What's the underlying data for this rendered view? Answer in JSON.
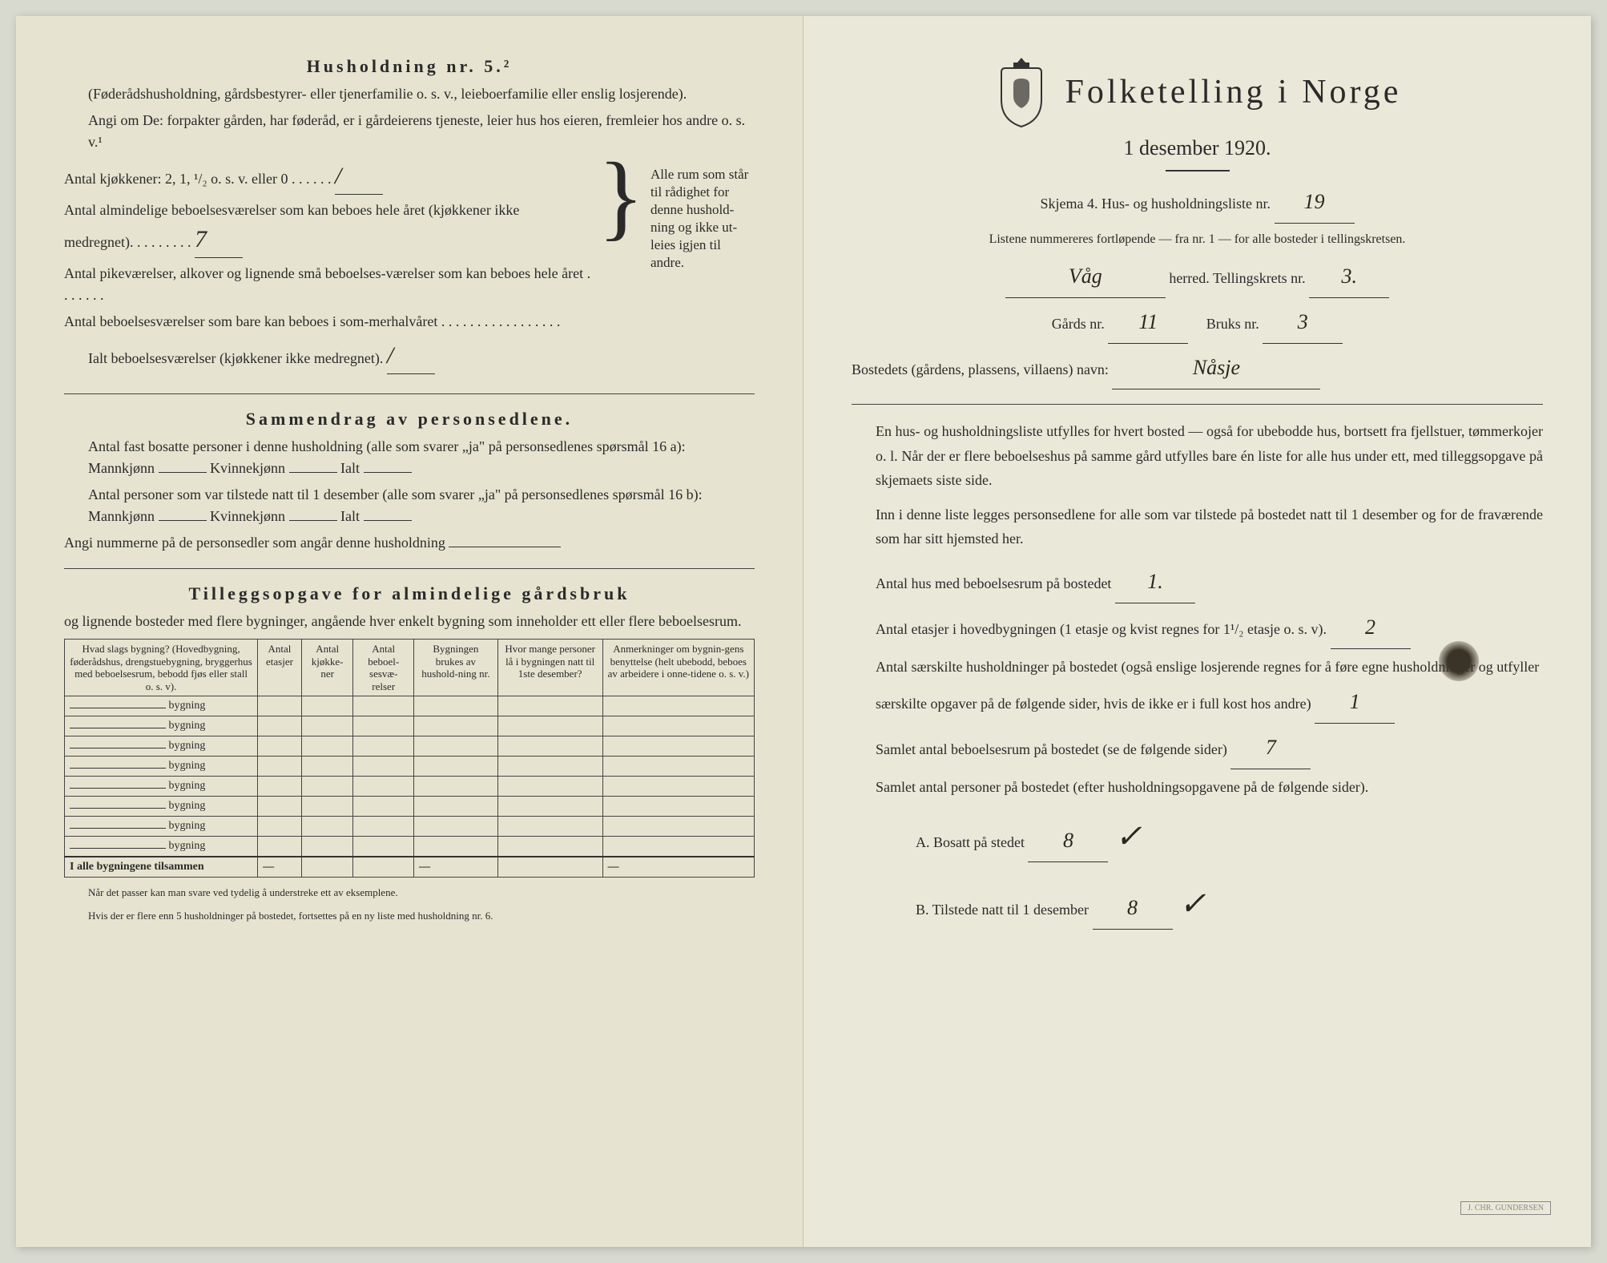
{
  "left": {
    "section5_title": "Husholdning nr. 5.²",
    "section5_sub1": "(Føderådshusholdning, gårdsbestyrer- eller tjenerfamilie o. s. v., leieboerfamilie eller enslig losjerende).",
    "section5_sub2": "Angi om De: forpakter gården, har føderåd, er i gårdeierens tjeneste, leier hus hos eieren, fremleier hos andre o. s. v.¹",
    "kitchen_line": "Antal kjøkkener: 2, 1, ¹/₂ o. s. v. eller 0 . . . . . .",
    "rooms_line1": "Antal almindelige beboelsesværelser som kan beboes hele året (kjøkkener ikke medregnet). . . . . . . . .",
    "rooms_line2": "Antal pikeværelser, alkover og lignende små beboelses-værelser som kan beboes hele året . . . . . . .",
    "rooms_line3": "Antal beboelsesværelser som bare kan beboes i som-merhalvåret . . . . . . . . . . . . . . . . .",
    "rooms_total": "Ialt beboelsesværelser (kjøkkener ikke medregnet).",
    "brace_text": "Alle rum som står til rådighet for denne hushold-ning og ikke ut-leies igjen til andre.",
    "sammendrag_title": "Sammendrag av personsedlene.",
    "sammendrag_l1": "Antal fast bosatte personer i denne husholdning (alle som svarer „ja\" på personsedlenes spørsmål 16 a): Mannkjønn",
    "sammendrag_l1b": "Kvinnekjønn",
    "sammendrag_l1c": "Ialt",
    "sammendrag_l2": "Antal personer som var tilstede natt til 1 desember (alle som svarer „ja\" på personsedlenes spørsmål 16 b): Mannkjønn",
    "sammendrag_l3": "Angi nummerne på de personsedler som angår denne husholdning",
    "tillegg_title": "Tilleggsopgave for almindelige gårdsbruk",
    "tillegg_sub": "og lignende bosteder med flere bygninger, angående hver enkelt bygning som inneholder ett eller flere beboelsesrum.",
    "table_headers": [
      "Hvad slags bygning?\n(Hovedbygning, føderådshus, drengstuebygning, bryggerhus med beboelsesrum, bebodd fjøs eller stall o. s. v).",
      "Antal etasjer",
      "Antal kjøkke-ner",
      "Antal beboel-sesvæ-relser",
      "Bygningen brukes av hushold-ning nr.",
      "Hvor mange personer lå i bygningen natt til 1ste desember?",
      "Anmerkninger om bygnin-gens benyttelse (helt ubebodd, beboes av arbeidere i onne-tidene o. s. v.)"
    ],
    "row_label": "bygning",
    "total_label": "I alle bygningene tilsammen",
    "footnote1": "Når det passer kan man svare ved tydelig å understreke ett av eksemplene.",
    "footnote2": "Hvis der er flere enn 5 husholdninger på bostedet, fortsettes på en ny liste med husholdning nr. 6.",
    "handwritten_7": "7",
    "handwritten_slash1": "/",
    "handwritten_slash2": "/"
  },
  "right": {
    "main_title": "Folketelling i Norge",
    "date": "1 desember 1920.",
    "schema_line": "Skjema 4.   Hus- og husholdningsliste nr.",
    "schema_nr": "19",
    "list_note": "Listene nummereres fortløpende — fra nr. 1 — for alle bosteder i tellingskretsen.",
    "herred_label": "herred.   Tellingskrets nr.",
    "herred_value": "Våg",
    "krets_nr": "3.",
    "gards_label": "Gårds nr.",
    "gards_nr": "11",
    "bruks_label": "Bruks nr.",
    "bruks_nr": "3",
    "bosted_label": "Bostedets (gårdens, plassens, villaens) navn:",
    "bosted_value": "Nåsje",
    "para1": "En hus- og husholdningsliste utfylles for hvert bosted — også for ubebodde hus, bortsett fra fjellstuer, tømmerkojer o. l. Når der er flere beboelseshus på samme gård utfylles bare én liste for alle hus under ett, med tilleggsopgave på skjemaets siste side.",
    "para2": "Inn i denne liste legges personsedlene for alle som var tilstede på bostedet natt til 1 desember og for de fraværende som har sitt hjemsted her.",
    "q1": "Antal hus med beboelsesrum på bostedet",
    "q1_val": "1.",
    "q2": "Antal etasjer i hovedbygningen (1 etasje og kvist regnes for 1¹/₂ etasje o. s. v).",
    "q2_val": "2",
    "q3": "Antal særskilte husholdninger på bostedet (også enslige losjerende regnes for å føre egne husholdninger og utfyller særskilte opgaver på de følgende sider, hvis de ikke er i full kost hos andre)",
    "q3_val": "1",
    "q4": "Samlet antal beboelsesrum på bostedet (se de følgende sider)",
    "q4_val": "7",
    "q5": "Samlet antal personer på bostedet (efter husholdningsopgavene på de følgende sider).",
    "qA": "A.  Bosatt på stedet",
    "qA_val": "8",
    "qA_check": "✓",
    "qB": "B.  Tilstede natt til 1 desember",
    "qB_val": "8",
    "qB_check": "✓",
    "stamp": "J. CHR. GUNDERSEN"
  },
  "colors": {
    "paper": "#e8e6d4",
    "paper_left": "#e6e4d0",
    "ink": "#2a2a2a",
    "handwriting": "#2a2620"
  }
}
